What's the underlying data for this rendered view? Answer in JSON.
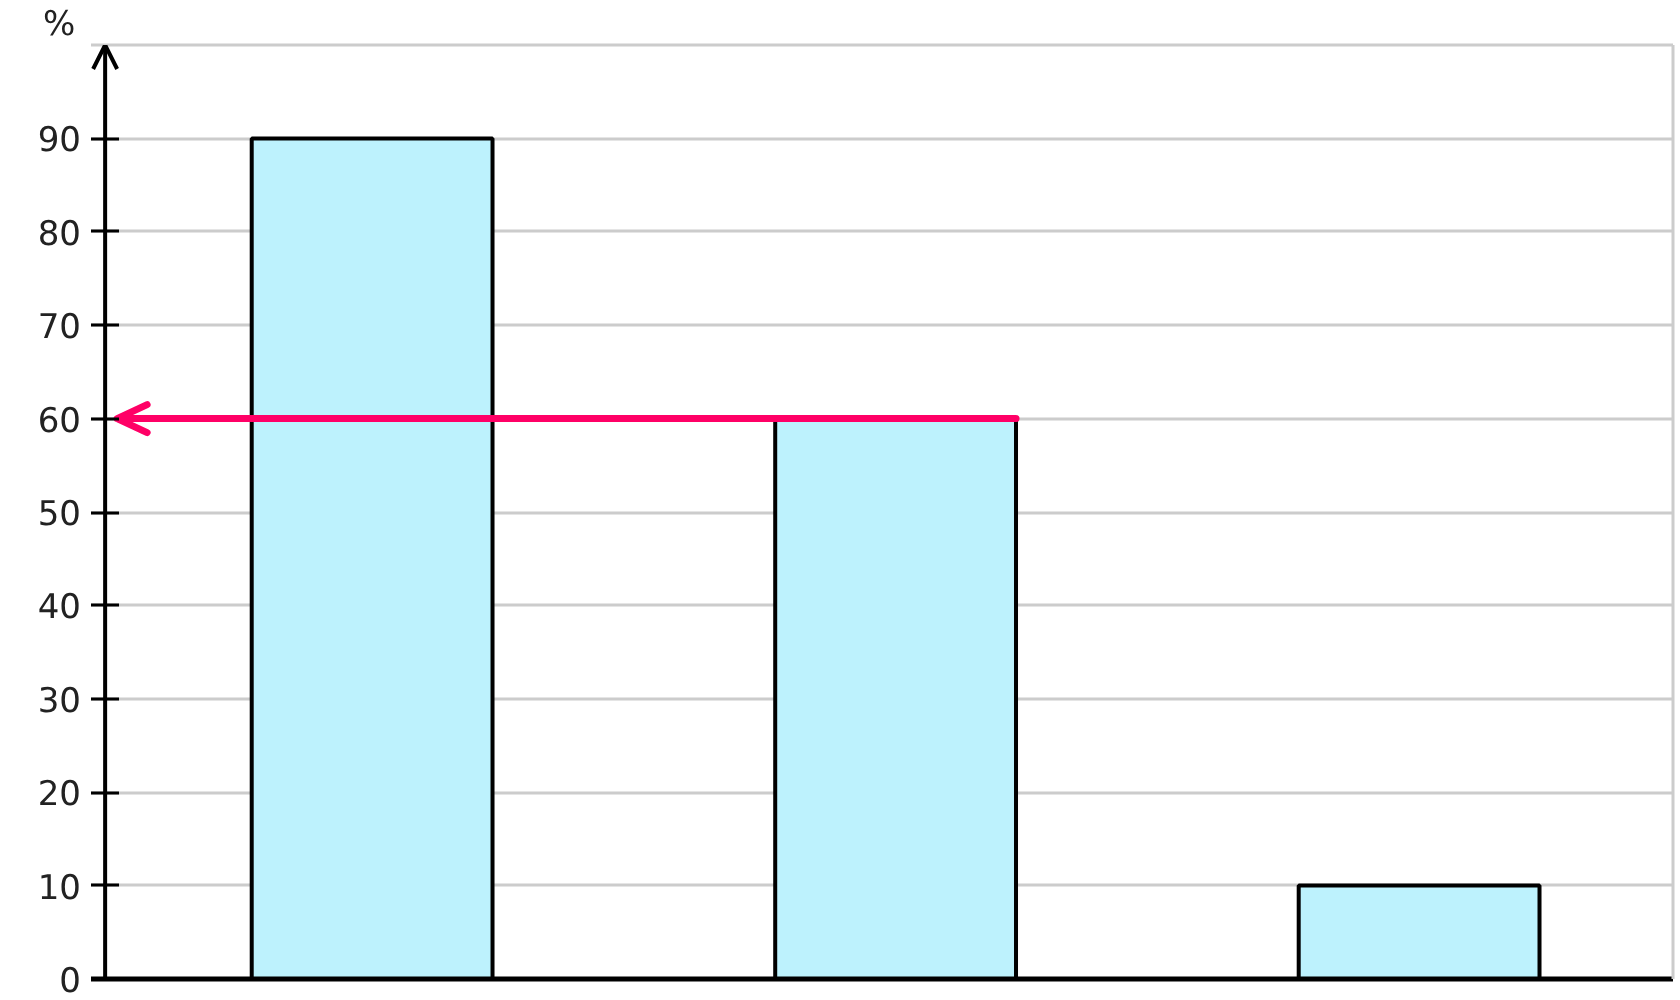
{
  "chart_data": {
    "type": "bar",
    "ylabel": "%",
    "categories": [
      null,
      null,
      null
    ],
    "values": [
      90,
      60,
      10
    ],
    "color": "#bdf2fd",
    "ylim": [
      0,
      100
    ],
    "yticks": [
      0,
      10,
      20,
      30,
      40,
      50,
      60,
      70,
      80,
      90
    ],
    "grid": "y",
    "ref_lines": [
      {
        "axis": "y",
        "value": 60,
        "color": "#ff0066"
      }
    ]
  }
}
